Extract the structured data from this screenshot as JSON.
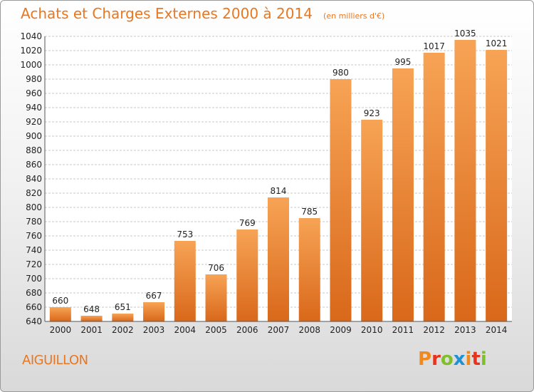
{
  "chart_data": {
    "type": "bar",
    "title": "Achats et Charges Externes 2000 à 2014",
    "subtitle": "(en milliers d'€)",
    "categories": [
      "2000",
      "2001",
      "2002",
      "2003",
      "2004",
      "2005",
      "2006",
      "2007",
      "2008",
      "2009",
      "2010",
      "2011",
      "2012",
      "2013",
      "2014"
    ],
    "values": [
      660,
      648,
      651,
      667,
      753,
      706,
      769,
      814,
      785,
      980,
      923,
      995,
      1017,
      1035,
      1021
    ],
    "ylim": [
      640,
      1040
    ],
    "ytick_step": 20,
    "grid": true,
    "bar_color": "#e87722"
  },
  "footer": {
    "town": "AIGUILLON",
    "logo_letters": [
      "P",
      "r",
      "o",
      "x",
      "i",
      "t",
      "i"
    ],
    "logo_colors": [
      "#f08a1c",
      "#e8331c",
      "#7fbf2a",
      "#1e90d6",
      "#f08a1c",
      "#e8331c",
      "#7fbf2a"
    ]
  }
}
